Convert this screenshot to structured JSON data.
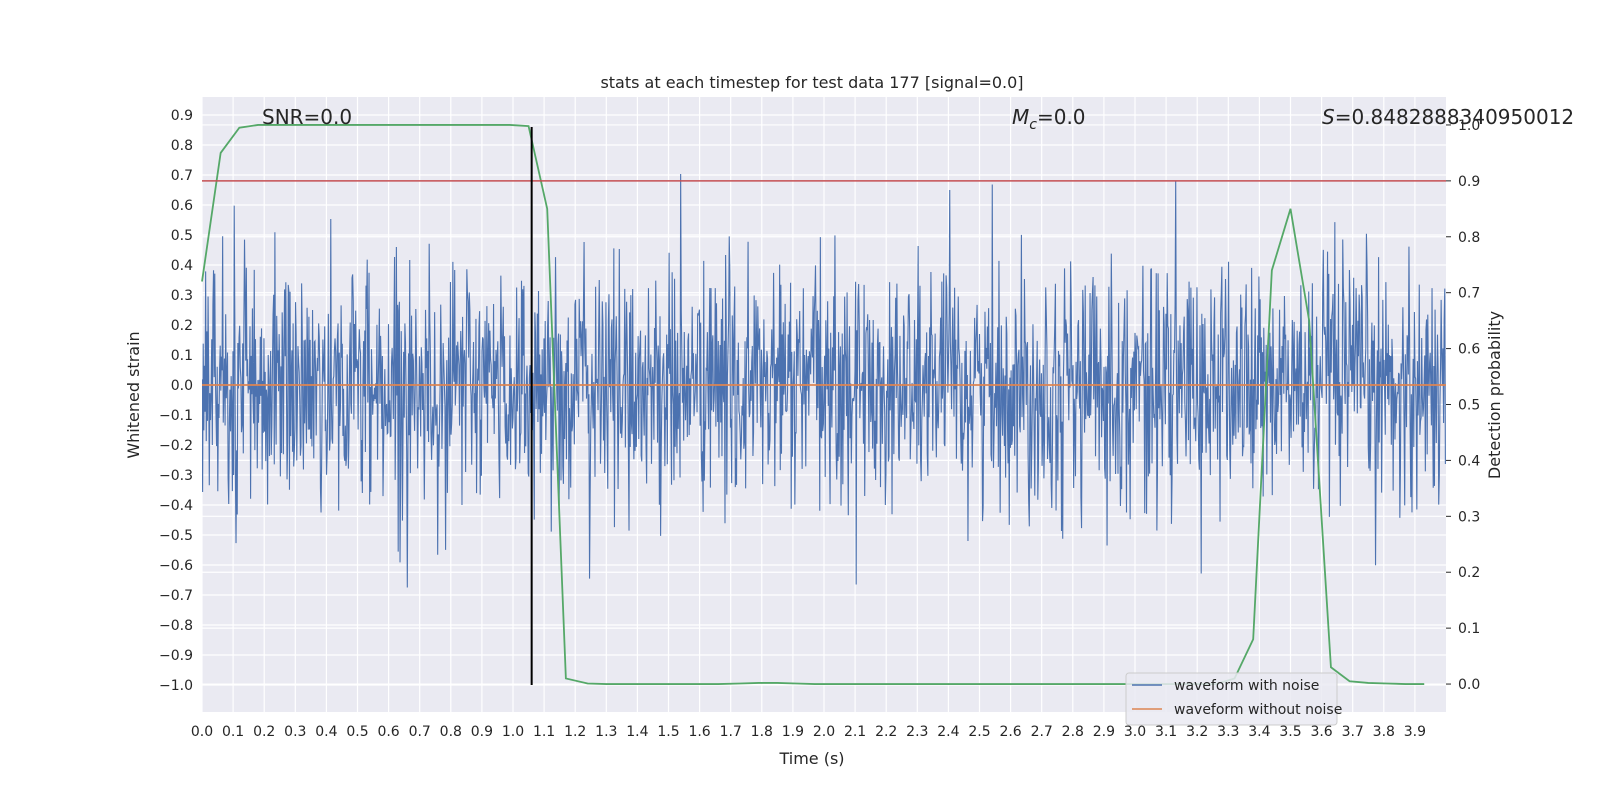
{
  "chart_data": {
    "type": "line",
    "title": "stats at each timestep for test data 177 [signal=0.0]",
    "xlabel": "Time (s)",
    "ylabel": "Whitened strain",
    "y2label": "Detection probability",
    "xlim": [
      0.0,
      4.0
    ],
    "ylim": [
      -1.09,
      0.96
    ],
    "y2lim": [
      -0.05,
      1.05
    ],
    "xticks": [
      0.0,
      0.1,
      0.2,
      0.3,
      0.4,
      0.5,
      0.6,
      0.7,
      0.8,
      0.9,
      1.0,
      1.1,
      1.2,
      1.3,
      1.4,
      1.5,
      1.6,
      1.7,
      1.8,
      1.9,
      2.0,
      2.1,
      2.2,
      2.3,
      2.4,
      2.5,
      2.6,
      2.7,
      2.8,
      2.9,
      3.0,
      3.1,
      3.2,
      3.3,
      3.4,
      3.5,
      3.6,
      3.7,
      3.8,
      3.9
    ],
    "yticks": [
      0.9,
      0.8,
      0.7,
      0.6,
      0.5,
      0.4,
      0.3,
      0.2,
      0.1,
      0.0,
      -0.1,
      -0.2,
      -0.3,
      -0.4,
      -0.5,
      -0.6,
      -0.7,
      -0.8,
      -0.9,
      -1.0
    ],
    "y2ticks": [
      1.0,
      0.9,
      0.8,
      0.7,
      0.6,
      0.5,
      0.4,
      0.3,
      0.2,
      0.1,
      0.0
    ],
    "grid": true,
    "legend": {
      "placement": "lower-right",
      "entries": [
        "waveform with noise",
        "waveform without noise"
      ]
    },
    "annotations": {
      "snr_text": "SNR=0.0",
      "mc_symbol": "M",
      "mc_subscript": "c",
      "mc_value": "=0.0",
      "s_symbol": "S",
      "s_value": "=0.8482888340950012"
    },
    "series": [
      {
        "name": "waveform with noise",
        "axis": "left",
        "color": "#4c72b0",
        "kind": "noise",
        "duration": 4.0,
        "samples": 2048,
        "amplitude_std": 0.2
      },
      {
        "name": "waveform without noise",
        "axis": "left",
        "color": "#dd8452",
        "kind": "constant",
        "value": 0.0
      },
      {
        "name": "detection probability",
        "axis": "right",
        "color": "#55a868",
        "kind": "line",
        "x": [
          0.0,
          0.06,
          0.12,
          0.18,
          0.25,
          0.31,
          0.37,
          0.43,
          0.5,
          0.56,
          0.62,
          0.68,
          0.74,
          0.8,
          0.86,
          0.92,
          0.99,
          1.05,
          1.11,
          1.17,
          1.24,
          1.3,
          1.36,
          1.42,
          1.48,
          1.54,
          1.6,
          1.66,
          1.73,
          1.79,
          1.85,
          1.91,
          1.97,
          2.03,
          2.09,
          2.15,
          2.22,
          2.28,
          2.34,
          2.4,
          2.46,
          2.52,
          2.58,
          2.64,
          2.71,
          2.77,
          2.83,
          2.89,
          2.95,
          3.01,
          3.07,
          3.14,
          3.2,
          3.26,
          3.32,
          3.38,
          3.44,
          3.5,
          3.56,
          3.63,
          3.69,
          3.75,
          3.81,
          3.87,
          3.93
        ],
        "values": [
          0.72,
          0.95,
          0.995,
          1.0,
          1.0,
          1.0,
          1.0,
          1.0,
          1.0,
          1.0,
          1.0,
          1.0,
          1.0,
          1.0,
          1.0,
          1.0,
          1.0,
          0.998,
          0.85,
          0.01,
          0.001,
          0.0,
          0.0,
          0.0,
          0.0,
          0.0,
          0.0,
          0.0,
          0.001,
          0.002,
          0.002,
          0.001,
          0.0,
          0.0,
          0.0,
          0.0,
          0.0,
          0.0,
          0.0,
          0.0,
          0.0,
          0.0,
          0.0,
          0.0,
          0.0,
          0.0,
          0.0,
          0.0,
          0.0,
          0.0,
          0.0,
          0.0,
          0.0,
          0.0,
          0.01,
          0.08,
          0.74,
          0.85,
          0.65,
          0.03,
          0.005,
          0.002,
          0.001,
          0.0,
          0.0
        ]
      },
      {
        "name": "threshold",
        "axis": "right",
        "color": "#c44e52",
        "kind": "hline",
        "value": 0.9
      },
      {
        "name": "peak time marker",
        "axis": "left",
        "color": "#000000",
        "kind": "vline",
        "x": 1.06,
        "from": -1.0,
        "to": 0.86
      }
    ]
  }
}
